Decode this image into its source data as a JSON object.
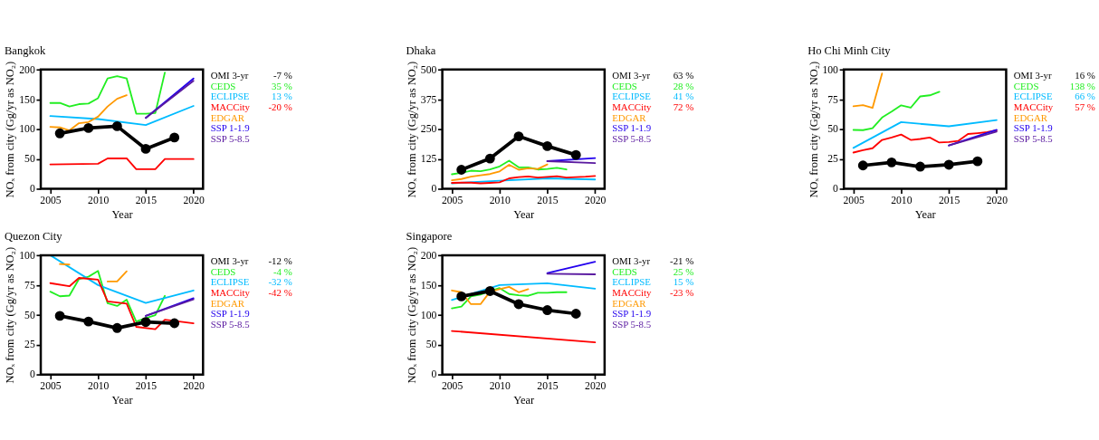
{
  "chart_data": [
    {
      "type": "line",
      "title": "Bangkok",
      "xlabel": "Year",
      "ylabel": "NOₓ from city (Gg/yr as NO₂)",
      "xlim": [
        2004,
        2021
      ],
      "ylim": [
        0,
        200
      ],
      "xticks": [
        2005,
        2010,
        2015,
        2020
      ],
      "yticks": [
        0,
        50,
        100,
        150,
        200
      ],
      "legend": "right",
      "annotations": [
        "-7 %",
        "35 %",
        "13 %",
        "-20 %"
      ],
      "series": [
        {
          "name": "OMI 3-yr",
          "color": "#000000",
          "marker": "circle",
          "x": [
            2006,
            2009,
            2012,
            2015,
            2018
          ],
          "values": [
            93,
            102,
            105,
            67,
            86
          ]
        },
        {
          "name": "CEDS",
          "color": "#22ee22",
          "x": [
            2005,
            2006,
            2007,
            2008,
            2009,
            2010,
            2011,
            2012,
            2013,
            2014,
            2015,
            2016,
            2017
          ],
          "values": [
            144,
            144,
            138,
            142,
            143,
            152,
            185,
            189,
            185,
            126,
            126,
            127,
            195
          ]
        },
        {
          "name": "ECLIPSE",
          "color": "#00bbff",
          "x": [
            2005,
            2010,
            2015,
            2020
          ],
          "values": [
            122,
            117,
            107,
            139
          ]
        },
        {
          "name": "MACCity",
          "color": "#ff0000",
          "x": [
            2005,
            2010,
            2011,
            2013,
            2014,
            2016,
            2017,
            2020
          ],
          "values": [
            41,
            42,
            51,
            51,
            33,
            33,
            50,
            50
          ]
        },
        {
          "name": "EDGAR",
          "color": "#ff9900",
          "x": [
            2005,
            2006,
            2007,
            2008,
            2009,
            2010,
            2011,
            2012,
            2013
          ],
          "values": [
            104,
            103,
            98,
            110,
            112,
            121,
            138,
            151,
            157
          ]
        },
        {
          "name": "SSP 1-1.9",
          "color": "#2200ee",
          "x": [
            2015,
            2020
          ],
          "values": [
            119,
            185
          ]
        },
        {
          "name": "SSP 5-8.5",
          "color": "#5a1aa0",
          "x": [
            2015,
            2020
          ],
          "values": [
            119,
            181
          ]
        }
      ]
    },
    {
      "type": "line",
      "title": "Dhaka",
      "xlabel": "Year",
      "ylabel": "NOₓ from city (Gg/yr as NO₂)",
      "xlim": [
        2004,
        2021
      ],
      "ylim": [
        0,
        500
      ],
      "xticks": [
        2005,
        2010,
        2015,
        2020
      ],
      "yticks": [
        0,
        125,
        250,
        375,
        500
      ],
      "legend": "right",
      "annotations": [
        "63 %",
        "28 %",
        "41 %",
        "72 %"
      ],
      "series": [
        {
          "name": "OMI 3-yr",
          "color": "#000000",
          "marker": "circle",
          "x": [
            2006,
            2009,
            2012,
            2015,
            2018
          ],
          "values": [
            80,
            127,
            220,
            179,
            142
          ]
        },
        {
          "name": "CEDS",
          "color": "#22ee22",
          "x": [
            2005,
            2006,
            2007,
            2008,
            2009,
            2010,
            2011,
            2012,
            2013,
            2014,
            2015,
            2016,
            2017
          ],
          "values": [
            61,
            67,
            76,
            74,
            81,
            94,
            118,
            90,
            90,
            81,
            83,
            88,
            81
          ]
        },
        {
          "name": "ECLIPSE",
          "color": "#00bbff",
          "x": [
            2005,
            2010,
            2015,
            2020
          ],
          "values": [
            23,
            34,
            44,
            39
          ]
        },
        {
          "name": "MACCity",
          "color": "#ff0000",
          "x": [
            2005,
            2006,
            2007,
            2008,
            2009,
            2010,
            2011,
            2012,
            2013,
            2014,
            2015,
            2016,
            2017,
            2018,
            2019,
            2020
          ],
          "values": [
            25,
            26,
            26,
            23,
            25,
            27,
            44,
            49,
            52,
            47,
            50,
            53,
            47,
            49,
            51,
            54
          ]
        },
        {
          "name": "EDGAR",
          "color": "#ff9900",
          "x": [
            2005,
            2006,
            2007,
            2008,
            2009,
            2010,
            2011,
            2012,
            2013,
            2014,
            2015
          ],
          "values": [
            36,
            41,
            51,
            57,
            62,
            73,
            101,
            80,
            86,
            83,
            102
          ]
        },
        {
          "name": "SSP 1-1.9",
          "color": "#2200ee",
          "x": [
            2015,
            2020
          ],
          "values": [
            116,
            129
          ]
        },
        {
          "name": "SSP 5-8.5",
          "color": "#5a1aa0",
          "x": [
            2015,
            2020
          ],
          "values": [
            116,
            108
          ]
        }
      ]
    },
    {
      "type": "line",
      "title": "Ho Chi Minh City",
      "xlabel": "Year",
      "ylabel": "NOₓ from city (Gg/yr as NO₂)",
      "xlim": [
        2004,
        2021
      ],
      "ylim": [
        0,
        100
      ],
      "xticks": [
        2005,
        2010,
        2015,
        2020
      ],
      "yticks": [
        0,
        25,
        50,
        75,
        100
      ],
      "legend": "right",
      "annotations": [
        "16 %",
        "138 %",
        "66 %",
        "57 %"
      ],
      "series": [
        {
          "name": "OMI 3-yr",
          "color": "#000000",
          "marker": "circle",
          "x": [
            2006,
            2009,
            2012,
            2015,
            2018
          ],
          "values": [
            19.6,
            22.2,
            18.6,
            20.2,
            23.1
          ]
        },
        {
          "name": "CEDS",
          "color": "#22ee22",
          "x": [
            2005,
            2006,
            2007,
            2008,
            2009,
            2010,
            2011,
            2012,
            2013,
            2014
          ],
          "values": [
            49.4,
            49.2,
            50.8,
            59.8,
            64.7,
            70,
            68,
            77.5,
            78.4,
            81.4
          ]
        },
        {
          "name": "ECLIPSE",
          "color": "#00bbff",
          "x": [
            2005,
            2010,
            2015,
            2020
          ],
          "values": [
            34.3,
            55.9,
            52.4,
            57.6
          ]
        },
        {
          "name": "MACCity",
          "color": "#ff0000",
          "x": [
            2005,
            2006,
            2007,
            2008,
            2009,
            2010,
            2011,
            2012,
            2013,
            2014,
            2015,
            2016,
            2017,
            2018,
            2019,
            2020
          ],
          "values": [
            30.4,
            32.4,
            34,
            41,
            43,
            45.5,
            41,
            41.8,
            43,
            38.8,
            39.2,
            40.2,
            46,
            46.7,
            47.5,
            49
          ]
        },
        {
          "name": "EDGAR",
          "color": "#ff9900",
          "x": [
            2005,
            2006,
            2007,
            2008
          ],
          "values": [
            69.2,
            70.2,
            67.8,
            96.7
          ]
        },
        {
          "name": "SSP 1-1.9",
          "color": "#2200ee",
          "x": [
            2015,
            2020
          ],
          "values": [
            36.3,
            49.4
          ]
        },
        {
          "name": "SSP 5-8.5",
          "color": "#5a1aa0",
          "x": [
            2015,
            2020
          ],
          "values": [
            36.3,
            48
          ]
        }
      ]
    },
    {
      "type": "line",
      "title": "Quezon City",
      "xlabel": "Year",
      "ylabel": "NOₓ from city (Gg/yr as NO₂)",
      "xlim": [
        2004,
        2021
      ],
      "ylim": [
        0,
        100
      ],
      "xticks": [
        2005,
        2010,
        2015,
        2020
      ],
      "yticks": [
        0,
        25,
        50,
        75,
        100
      ],
      "legend": "right",
      "annotations": [
        "-12 %",
        "-4 %",
        "-32 %",
        "-42 %"
      ],
      "series": [
        {
          "name": "OMI 3-yr",
          "color": "#000000",
          "marker": "circle",
          "x": [
            2006,
            2009,
            2012,
            2015,
            2018
          ],
          "values": [
            49.2,
            44.4,
            39,
            44,
            43
          ]
        },
        {
          "name": "CEDS",
          "color": "#22ee22",
          "x": [
            2005,
            2006,
            2007,
            2008,
            2009,
            2010,
            2011,
            2012,
            2013,
            2014,
            2015,
            2016,
            2017
          ],
          "values": [
            69.5,
            65.6,
            66.2,
            80,
            82,
            86.9,
            59.8,
            57.5,
            62.7,
            44.4,
            47.3,
            49.8,
            66
          ]
        },
        {
          "name": "ECLIPSE",
          "color": "#00bbff",
          "x": [
            2005,
            2010,
            2015,
            2020
          ],
          "values": [
            100,
            75,
            60,
            70.5
          ]
        },
        {
          "name": "MACCity",
          "color": "#ff0000",
          "x": [
            2005,
            2007,
            2008,
            2010,
            2011,
            2013,
            2014,
            2016,
            2017,
            2020
          ],
          "values": [
            76.6,
            74,
            81,
            79.5,
            61.4,
            59.5,
            40,
            38,
            46,
            42.9
          ]
        },
        {
          "name": "EDGAR",
          "color": "#ff9900",
          "x": [
            2006,
            2007,
            2008,
            2011,
            2012,
            2013
          ],
          "values": [
            92.6,
            92.2,
            null,
            78,
            78,
            86.5
          ]
        },
        {
          "name": "SSP 1-1.9",
          "color": "#2200ee",
          "x": [
            2015,
            2020
          ],
          "values": [
            49.2,
            64
          ]
        },
        {
          "name": "SSP 5-8.5",
          "color": "#5a1aa0",
          "x": [
            2015,
            2020
          ],
          "values": [
            49.2,
            63
          ]
        }
      ]
    },
    {
      "type": "line",
      "title": "Singapore",
      "xlabel": "Year",
      "ylabel": "NOₓ from city (Gg/yr as NO₂)",
      "xlim": [
        2004,
        2021
      ],
      "ylim": [
        0,
        200
      ],
      "xticks": [
        2005,
        2010,
        2015,
        2020
      ],
      "yticks": [
        0,
        50,
        100,
        150,
        200
      ],
      "legend": "right",
      "annotations": [
        "-21 %",
        "25 %",
        "15 %",
        "-23 %"
      ],
      "series": [
        {
          "name": "OMI 3-yr",
          "color": "#000000",
          "marker": "circle",
          "x": [
            2006,
            2009,
            2012,
            2015,
            2018
          ],
          "values": [
            131,
            140,
            118,
            108,
            102
          ]
        },
        {
          "name": "CEDS",
          "color": "#22ee22",
          "x": [
            2005,
            2006,
            2007,
            2008,
            2009,
            2010,
            2011,
            2012,
            2013,
            2014,
            2015,
            2016,
            2017
          ],
          "values": [
            111,
            114,
            131,
            134,
            140,
            145,
            135,
            133,
            132,
            137,
            137,
            138,
            138
          ]
        },
        {
          "name": "ECLIPSE",
          "color": "#00bbff",
          "x": [
            2005,
            2010,
            2015,
            2020
          ],
          "values": [
            125,
            150,
            153,
            144
          ]
        },
        {
          "name": "MACCity",
          "color": "#ff0000",
          "x": [
            2005,
            2020
          ],
          "values": [
            73,
            54
          ]
        },
        {
          "name": "EDGAR",
          "color": "#ff9900",
          "x": [
            2005,
            2006,
            2007,
            2008,
            2009,
            2010,
            2011,
            2012,
            2013
          ],
          "values": [
            141,
            138,
            118,
            118,
            139,
            143,
            147,
            138,
            143
          ]
        },
        {
          "name": "SSP 1-1.9",
          "color": "#2200ee",
          "x": [
            2015,
            2020
          ],
          "values": [
            170,
            189
          ]
        },
        {
          "name": "SSP 5-8.5",
          "color": "#5a1aa0",
          "x": [
            2015,
            2020
          ],
          "values": [
            169,
            168
          ]
        }
      ]
    }
  ]
}
